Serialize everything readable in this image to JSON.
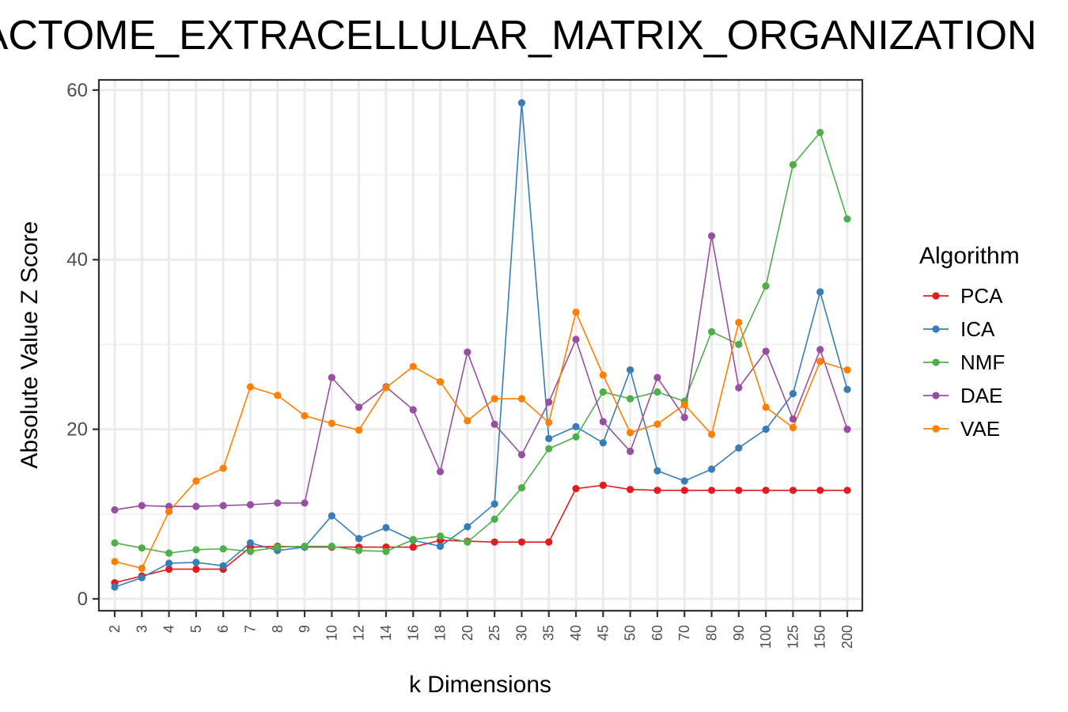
{
  "chart_data": {
    "type": "line",
    "title": "REACTOME_EXTRACELLULAR_MATRIX_ORGANIZATION",
    "xlabel": "k Dimensions",
    "ylabel": "Absolute Value Z Score",
    "x_scale": "categorical",
    "categories": [
      "2",
      "3",
      "4",
      "5",
      "6",
      "7",
      "8",
      "9",
      "10",
      "12",
      "14",
      "16",
      "18",
      "20",
      "25",
      "30",
      "35",
      "40",
      "45",
      "50",
      "60",
      "70",
      "80",
      "90",
      "100",
      "125",
      "150",
      "200"
    ],
    "y_ticks": [
      0,
      20,
      40,
      60
    ],
    "ylim": [
      -1.4,
      61.2
    ],
    "grid": true,
    "legend": {
      "title": "Algorithm",
      "position": "right"
    },
    "series": [
      {
        "name": "PCA",
        "color": "#e41a1c",
        "values": [
          1.9,
          2.7,
          3.5,
          3.5,
          3.5,
          6.1,
          6.2,
          6.1,
          6.1,
          6.1,
          6.1,
          6.1,
          6.9,
          6.8,
          6.7,
          6.7,
          6.7,
          13.0,
          13.4,
          12.9,
          12.8,
          12.8,
          12.8,
          12.8,
          12.8,
          12.8,
          12.8,
          12.8
        ]
      },
      {
        "name": "ICA",
        "color": "#377eb8",
        "values": [
          1.4,
          2.5,
          4.2,
          4.3,
          3.9,
          6.6,
          5.7,
          6.1,
          9.8,
          7.1,
          8.4,
          6.9,
          6.2,
          8.5,
          11.2,
          58.5,
          18.9,
          20.3,
          18.4,
          27.0,
          15.1,
          13.9,
          15.3,
          17.8,
          20.0,
          24.2,
          36.2,
          24.7
        ]
      },
      {
        "name": "NMF",
        "color": "#4daf4a",
        "values": [
          6.6,
          6.0,
          5.4,
          5.8,
          5.9,
          5.6,
          6.1,
          6.2,
          6.2,
          5.7,
          5.6,
          7.0,
          7.4,
          6.7,
          9.4,
          13.1,
          17.7,
          19.1,
          24.4,
          23.6,
          24.4,
          23.3,
          31.5,
          30.0,
          36.9,
          51.2,
          55.0,
          44.8
        ]
      },
      {
        "name": "DAE",
        "color": "#984ea3",
        "values": [
          10.5,
          11.0,
          10.9,
          10.9,
          11.0,
          11.1,
          11.3,
          11.3,
          26.1,
          22.6,
          25.0,
          22.3,
          15.0,
          29.1,
          20.6,
          17.0,
          23.2,
          30.6,
          20.9,
          17.4,
          26.1,
          21.4,
          42.8,
          24.9,
          29.2,
          21.2,
          29.4,
          20.0
        ]
      },
      {
        "name": "VAE",
        "color": "#ff7f00",
        "values": [
          4.4,
          3.6,
          10.3,
          13.9,
          15.4,
          25.0,
          24.0,
          21.6,
          20.7,
          19.9,
          24.9,
          27.4,
          25.6,
          21.0,
          23.6,
          23.6,
          20.8,
          33.8,
          26.4,
          19.6,
          20.6,
          22.9,
          19.4,
          32.6,
          22.6,
          20.2,
          28.0,
          27.0
        ]
      }
    ]
  }
}
